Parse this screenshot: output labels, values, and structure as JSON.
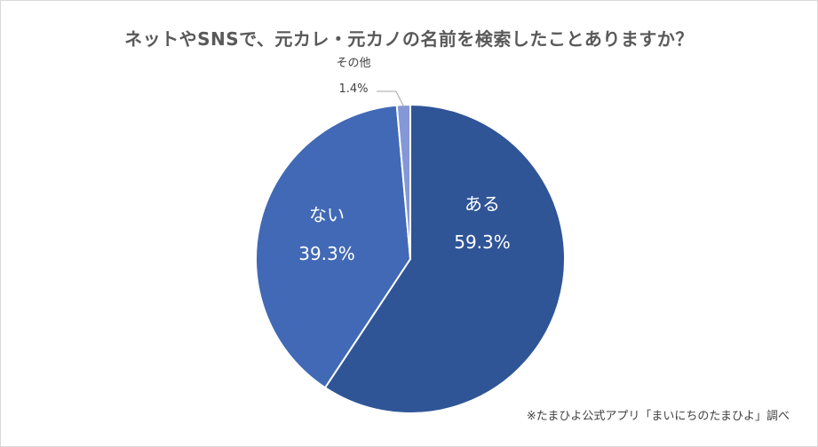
{
  "chart_data": {
    "type": "pie",
    "title": "ネットやSNSで、元カレ・元カノの名前を検索したことありますか？",
    "slices": [
      {
        "label": "ある",
        "value": 59.3,
        "value_label": "59.3%",
        "color": "#2f5597"
      },
      {
        "label": "ない",
        "value": 39.3,
        "value_label": "39.3%",
        "color": "#4169b5"
      },
      {
        "label": "その他",
        "value": 1.4,
        "value_label": "1.4%",
        "color": "#8497d6"
      }
    ],
    "legend": "none",
    "start": "top, clockwise"
  },
  "source_note": "※たまひよ公式アプリ「まいにちのたまひよ」調べ"
}
